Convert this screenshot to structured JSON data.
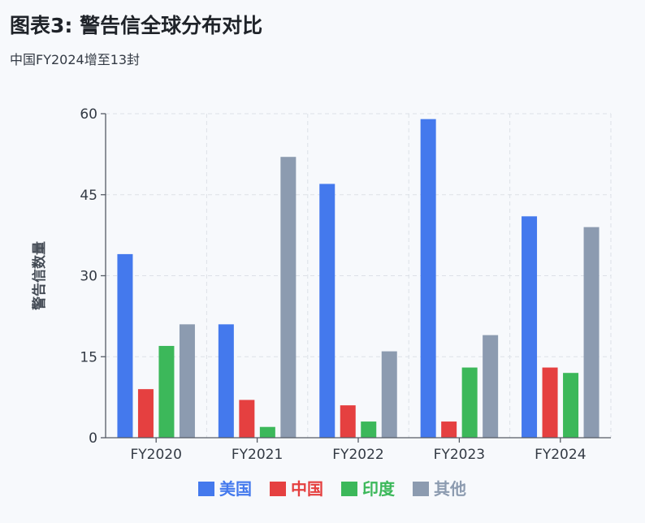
{
  "title": "图表3: 警告信全球分布对比",
  "subtitle": "中国FY2024增至13封",
  "chart_data": {
    "type": "bar",
    "categories": [
      "FY2020",
      "FY2021",
      "FY2022",
      "FY2023",
      "FY2024"
    ],
    "series": [
      {
        "name": "美国",
        "color": "#4479ed",
        "values": [
          34,
          21,
          47,
          59,
          41
        ]
      },
      {
        "name": "中国",
        "color": "#e54040",
        "values": [
          9,
          7,
          6,
          3,
          13
        ]
      },
      {
        "name": "印度",
        "color": "#3cb85a",
        "values": [
          17,
          2,
          3,
          13,
          12
        ]
      },
      {
        "name": "其他",
        "color": "#8c9bb0",
        "values": [
          21,
          52,
          16,
          19,
          39
        ]
      }
    ],
    "ylabel": "警告信数量",
    "xlabel": "",
    "ylim": [
      0,
      60
    ],
    "yticks": [
      0,
      15,
      30,
      45,
      60
    ],
    "grid": true,
    "legend": "bottom"
  }
}
